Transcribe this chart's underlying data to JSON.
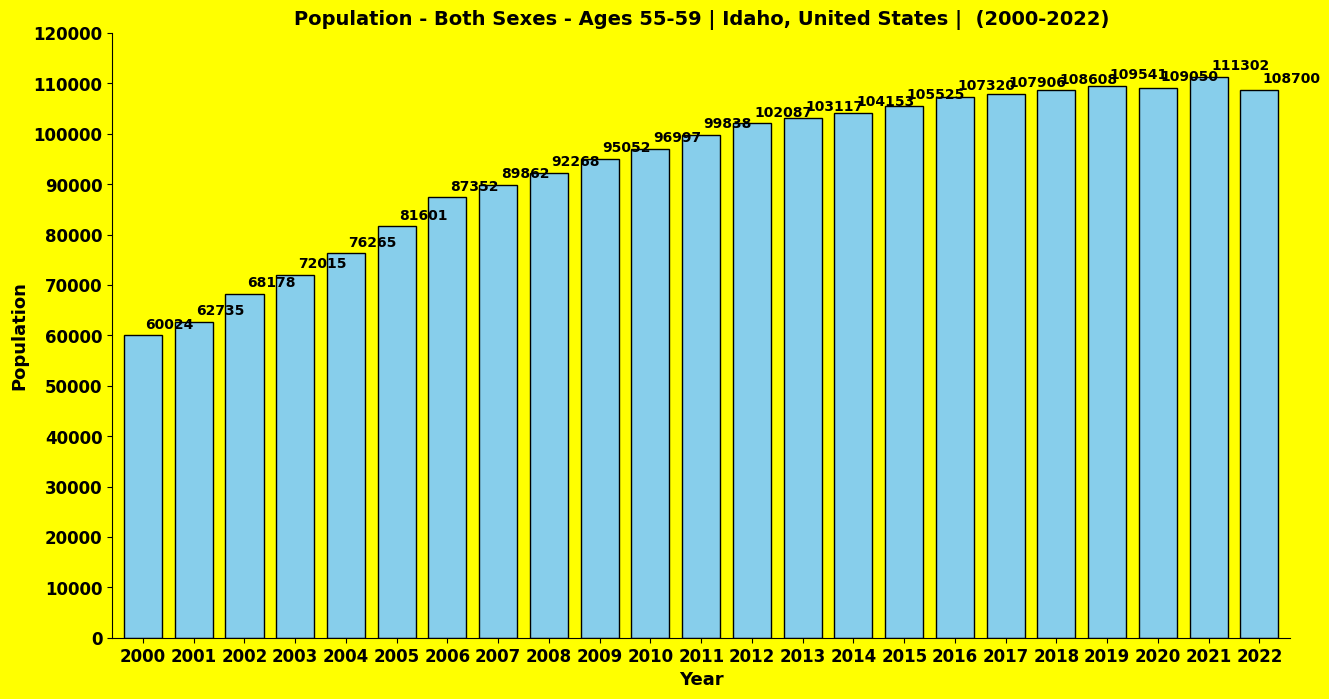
{
  "title": "Population - Both Sexes - Ages 55-59 | Idaho, United States |  (2000-2022)",
  "xlabel": "Year",
  "ylabel": "Population",
  "years": [
    2000,
    2001,
    2002,
    2003,
    2004,
    2005,
    2006,
    2007,
    2008,
    2009,
    2010,
    2011,
    2012,
    2013,
    2014,
    2015,
    2016,
    2017,
    2018,
    2019,
    2020,
    2021,
    2022
  ],
  "values": [
    60024,
    62735,
    68178,
    72015,
    76265,
    81601,
    87352,
    89862,
    92268,
    95052,
    96997,
    99838,
    102087,
    103117,
    104153,
    105525,
    107320,
    107906,
    108608,
    109541,
    109050,
    111302,
    108700
  ],
  "bar_color": "#87CEEB",
  "bar_edge_color": "#000000",
  "background_color": "#FFFF00",
  "text_color": "#000000",
  "title_fontsize": 14,
  "axis_label_fontsize": 13,
  "tick_fontsize": 12,
  "value_fontsize": 10,
  "ylim": [
    0,
    120000
  ],
  "yticks": [
    0,
    10000,
    20000,
    30000,
    40000,
    50000,
    60000,
    70000,
    80000,
    90000,
    100000,
    110000,
    120000
  ]
}
